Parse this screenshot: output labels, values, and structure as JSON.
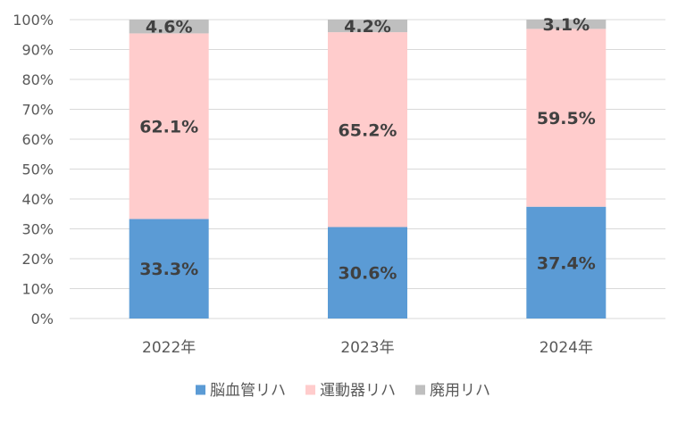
{
  "chart_data": {
    "type": "bar",
    "stacked": true,
    "categories": [
      "2022年",
      "2023年",
      "2024年"
    ],
    "series": [
      {
        "name": "脳血管リハ",
        "color": "#5B9BD5",
        "values": [
          33.3,
          30.6,
          37.4
        ],
        "labels": [
          "33.3%",
          "30.6%",
          "37.4%"
        ]
      },
      {
        "name": "運動器リハ",
        "color": "#FFCCCC",
        "values": [
          62.1,
          65.2,
          59.5
        ],
        "labels": [
          "62.1%",
          "65.2%",
          "59.5%"
        ]
      },
      {
        "name": "廃用リハ",
        "color": "#BFBFBF",
        "values": [
          4.6,
          4.2,
          3.1
        ],
        "labels": [
          "4.6%",
          "4.2%",
          "3.1%"
        ]
      }
    ],
    "yticks": [
      "0%",
      "10%",
      "20%",
      "30%",
      "40%",
      "50%",
      "60%",
      "70%",
      "80%",
      "90%",
      "100%"
    ],
    "ylim": [
      0,
      100
    ],
    "grid": true,
    "legend_position": "bottom",
    "label_color": "#404040",
    "axis_text_color": "#595959",
    "grid_color": "#D9D9D9"
  }
}
